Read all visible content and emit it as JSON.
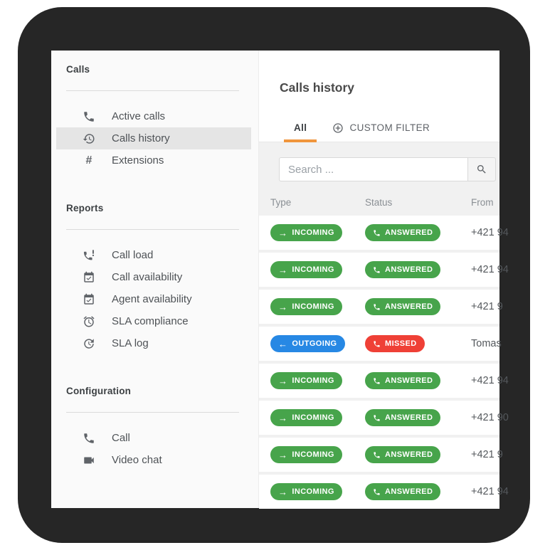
{
  "sidebar": {
    "sections": [
      {
        "header": "Calls",
        "items": [
          {
            "label": "Active calls",
            "icon": "phone-icon",
            "active": false
          },
          {
            "label": "Calls history",
            "icon": "history-icon",
            "active": true
          },
          {
            "label": "Extensions",
            "icon": "hash-icon",
            "active": false
          }
        ]
      },
      {
        "header": "Reports",
        "items": [
          {
            "label": "Call load",
            "icon": "phone-alert-icon",
            "active": false
          },
          {
            "label": "Call availability",
            "icon": "calendar-check-icon",
            "active": false
          },
          {
            "label": "Agent availability",
            "icon": "calendar-check-icon",
            "active": false
          },
          {
            "label": "SLA compliance",
            "icon": "alarm-icon",
            "active": false
          },
          {
            "label": "SLA log",
            "icon": "clock-refresh-icon",
            "active": false
          }
        ]
      },
      {
        "header": "Configuration",
        "items": [
          {
            "label": "Call",
            "icon": "phone-icon",
            "active": false
          },
          {
            "label": "Video chat",
            "icon": "videocam-icon",
            "active": false
          }
        ]
      }
    ]
  },
  "main": {
    "title": "Calls history",
    "tabs": [
      {
        "label": "All",
        "icon": null,
        "active": true
      },
      {
        "label": "CUSTOM FILTER",
        "icon": "plus-circle-icon",
        "active": false
      }
    ],
    "search": {
      "placeholder": "Search ...",
      "button_icon": "search-icon"
    },
    "table": {
      "columns": [
        "Type",
        "Status",
        "From"
      ],
      "rows": [
        {
          "type": "INCOMING",
          "status": "ANSWERED",
          "from": "+421 94"
        },
        {
          "type": "INCOMING",
          "status": "ANSWERED",
          "from": "+421 94"
        },
        {
          "type": "INCOMING",
          "status": "ANSWERED",
          "from": "+421 9"
        },
        {
          "type": "OUTGOING",
          "status": "MISSED",
          "from": "Tomas"
        },
        {
          "type": "INCOMING",
          "status": "ANSWERED",
          "from": "+421 94"
        },
        {
          "type": "INCOMING",
          "status": "ANSWERED",
          "from": "+421 90"
        },
        {
          "type": "INCOMING",
          "status": "ANSWERED",
          "from": "+421 9"
        },
        {
          "type": "INCOMING",
          "status": "ANSWERED",
          "from": "+421 94"
        }
      ]
    }
  },
  "colors": {
    "incoming": "#47A44B",
    "outgoing": "#2788E4",
    "answered": "#47A44B",
    "missed": "#EF4036",
    "tab_accent": "#F0953C"
  }
}
